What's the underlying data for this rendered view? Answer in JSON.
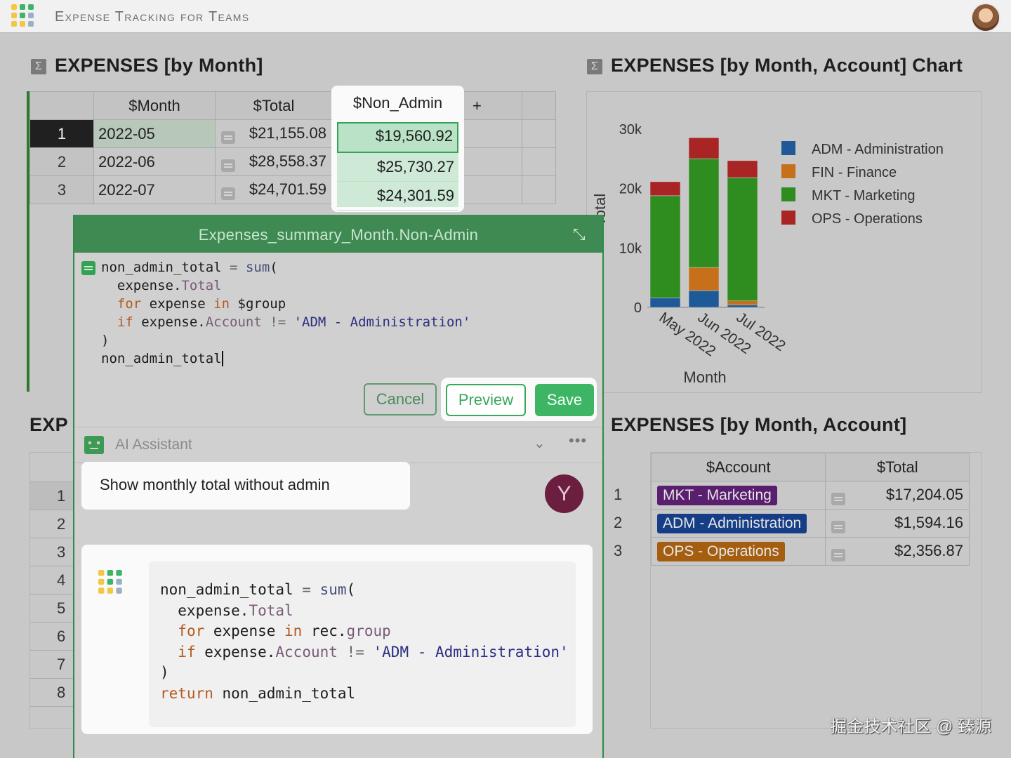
{
  "app": {
    "title": "Expense Tracking for Teams"
  },
  "section1": {
    "title": "EXPENSES [by Month]"
  },
  "table1": {
    "headers": [
      "$Month",
      "$Total",
      "$Non_Admin",
      "+"
    ],
    "rows": [
      {
        "n": "1",
        "month": "2022-05",
        "total": "$21,155.08",
        "non_admin": "$19,560.92"
      },
      {
        "n": "2",
        "month": "2022-06",
        "total": "$28,558.37",
        "non_admin": "$25,730.27"
      },
      {
        "n": "3",
        "month": "2022-07",
        "total": "$24,701.59",
        "non_admin": "$24,301.59"
      }
    ]
  },
  "section2": {
    "title": "EXPENSES [by Month, Account] Chart"
  },
  "chart_data": {
    "type": "bar",
    "stacked": true,
    "categories": [
      "May 2022",
      "Jun 2022",
      "Jul 2022"
    ],
    "xlabel": "Month",
    "ylabel": "Total",
    "yticks": [
      "0",
      "10k",
      "20k",
      "30k"
    ],
    "ylim": [
      0,
      30000
    ],
    "legend_position": "top-right",
    "series": [
      {
        "name": "ADM - Administration",
        "color": "#1f5a98",
        "values": [
          1594.16,
          2828.1,
          400
        ]
      },
      {
        "name": "FIN - Finance",
        "color": "#c6701a",
        "values": [
          0,
          3900,
          700
        ]
      },
      {
        "name": "MKT - Marketing",
        "color": "#2f8c1e",
        "values": [
          17204.05,
          18300,
          20750
        ]
      },
      {
        "name": "OPS - Operations",
        "color": "#a92424",
        "values": [
          2356.87,
          3530.27,
          2851.59
        ]
      }
    ]
  },
  "section3": {
    "title_prefix": "EXP"
  },
  "table2": {
    "rownums": [
      "1",
      "2",
      "3",
      "4",
      "5",
      "6",
      "7",
      "8"
    ]
  },
  "section4": {
    "title": "EXPENSES [by Month, Account]"
  },
  "table3": {
    "headers": [
      "$Account",
      "$Total"
    ],
    "rows": [
      {
        "n": "1",
        "account": "MKT - Marketing",
        "color": "#5a1e6e",
        "total": "$17,204.05"
      },
      {
        "n": "2",
        "account": "ADM - Administration",
        "color": "#163e86",
        "total": "$1,594.16"
      },
      {
        "n": "3",
        "account": "OPS - Operations",
        "color": "#a55e10",
        "total": "$2,356.87"
      }
    ]
  },
  "editor": {
    "title": "Expenses_summary_Month.Non-Admin",
    "cancel": "Cancel",
    "preview": "Preview",
    "save": "Save"
  },
  "ai": {
    "title": "AI Assistant",
    "user_message": "Show monthly total without admin",
    "user_initial": "Y"
  },
  "watermark": "掘金技术社区 @ 臻源"
}
